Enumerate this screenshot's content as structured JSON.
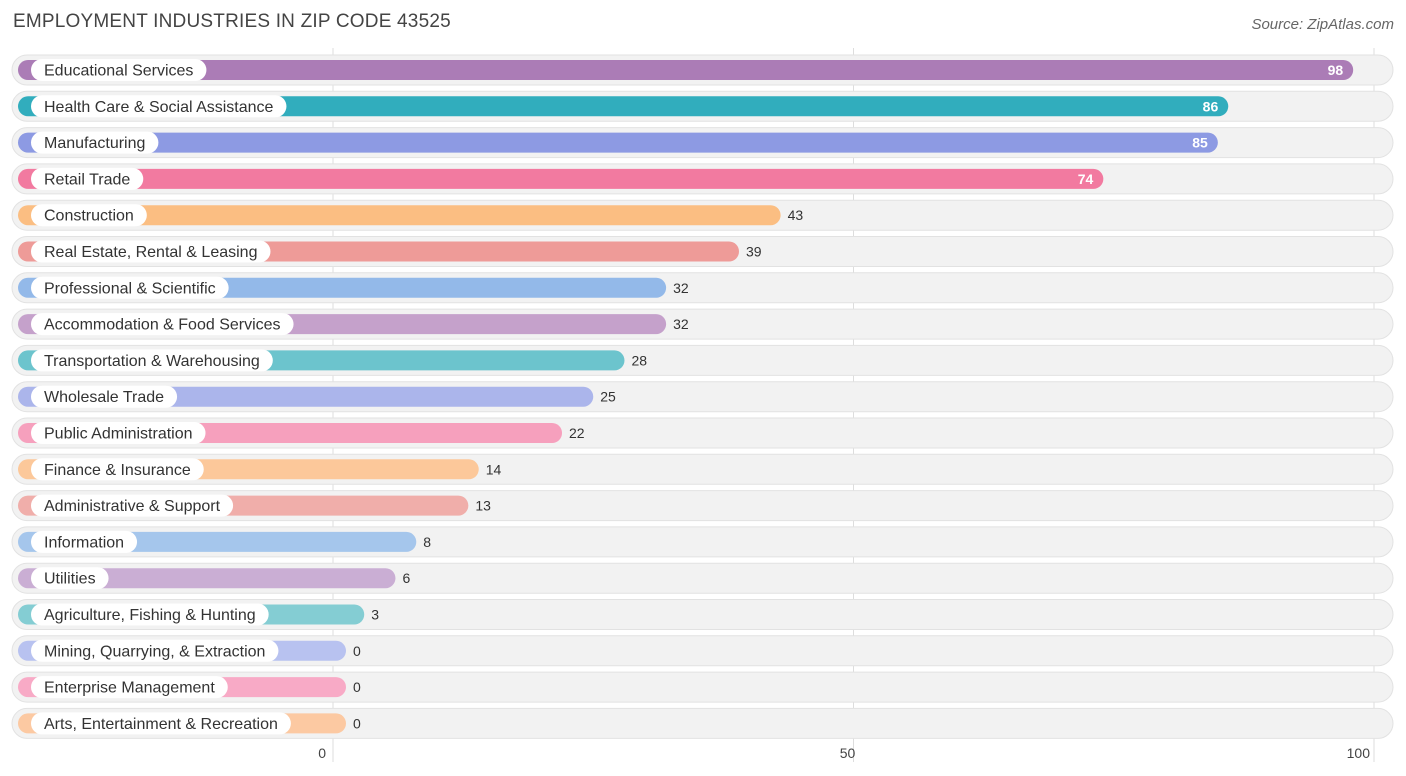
{
  "header": {
    "title": "EMPLOYMENT INDUSTRIES IN ZIP CODE 43525",
    "source": "Source: ZipAtlas.com"
  },
  "chart_data": {
    "type": "bar",
    "orientation": "horizontal",
    "title": "EMPLOYMENT INDUSTRIES IN ZIP CODE 43525",
    "xlabel": "",
    "ylabel": "",
    "xlim": [
      0,
      100
    ],
    "ticks": [
      0,
      50,
      100
    ],
    "grid": true,
    "categories": [
      "Educational Services",
      "Health Care & Social Assistance",
      "Manufacturing",
      "Retail Trade",
      "Construction",
      "Real Estate, Rental & Leasing",
      "Professional & Scientific",
      "Accommodation & Food Services",
      "Transportation & Warehousing",
      "Wholesale Trade",
      "Public Administration",
      "Finance & Insurance",
      "Administrative & Support",
      "Information",
      "Utilities",
      "Agriculture, Fishing & Hunting",
      "Mining, Quarrying, & Extraction",
      "Enterprise Management",
      "Arts, Entertainment & Recreation"
    ],
    "values": [
      98,
      86,
      85,
      74,
      43,
      39,
      32,
      32,
      28,
      25,
      22,
      14,
      13,
      8,
      6,
      3,
      0,
      0,
      0
    ],
    "colors": [
      "#ab7cb6",
      "#31adbd",
      "#8d9ae3",
      "#f27aa0",
      "#fbbe82",
      "#ee9b98",
      "#93b9e9",
      "#c5a1cb",
      "#6cc4cd",
      "#abb5eb",
      "#f6a0bd",
      "#fcc89a",
      "#f0aeaa",
      "#a5c6ec",
      "#caaed4",
      "#84cdd3",
      "#b8c2f0",
      "#f8aac6",
      "#fcc9a2"
    ]
  }
}
